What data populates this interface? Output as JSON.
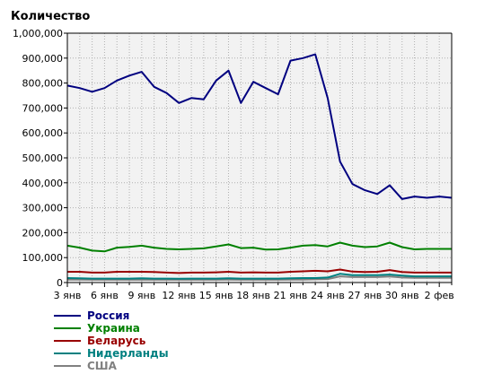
{
  "chart_data": {
    "type": "line",
    "title": "Количество",
    "ylim": [
      0,
      1000000
    ],
    "yticks": [
      "0",
      "100,000",
      "200,000",
      "300,000",
      "400,000",
      "500,000",
      "600,000",
      "700,000",
      "800,000",
      "900,000",
      "1,000,000"
    ],
    "x": [
      "3 янв",
      "4 янв",
      "5 янв",
      "6 янв",
      "7 янв",
      "8 янв",
      "9 янв",
      "10 янв",
      "11 янв",
      "12 янв",
      "13 янв",
      "14 янв",
      "15 янв",
      "16 янв",
      "17 янв",
      "18 янв",
      "19 янв",
      "20 янв",
      "21 янв",
      "22 янв",
      "23 янв",
      "24 янв",
      "25 янв",
      "26 янв",
      "27 янв",
      "28 янв",
      "29 янв",
      "30 янв",
      "31 янв",
      "1 фев",
      "2 фев",
      "3 фев"
    ],
    "xtick_labels": [
      "3 янв",
      "6 янв",
      "9 янв",
      "12 янв",
      "15 янв",
      "18 янв",
      "21 янв",
      "24 янв",
      "27 янв",
      "30 янв",
      "2 фев"
    ],
    "grid": true,
    "legend_position": "bottom-left",
    "series": [
      {
        "name": "Россия",
        "color": "#000080",
        "values": [
          790000,
          780000,
          765000,
          780000,
          810000,
          830000,
          845000,
          785000,
          760000,
          720000,
          740000,
          735000,
          810000,
          850000,
          720000,
          805000,
          780000,
          755000,
          890000,
          900000,
          915000,
          740000,
          485000,
          395000,
          370000,
          355000,
          390000,
          335000,
          345000,
          340000,
          345000,
          340000
        ]
      },
      {
        "name": "Украина",
        "color": "#008000",
        "values": [
          148000,
          140000,
          128000,
          125000,
          140000,
          143000,
          148000,
          140000,
          135000,
          133000,
          135000,
          137000,
          145000,
          153000,
          138000,
          140000,
          132000,
          133000,
          140000,
          148000,
          150000,
          145000,
          160000,
          148000,
          142000,
          145000,
          160000,
          142000,
          133000,
          135000,
          135000,
          135000
        ]
      },
      {
        "name": "Беларусь",
        "color": "#990000",
        "values": [
          43000,
          43000,
          40000,
          40000,
          43000,
          43000,
          43000,
          42000,
          40000,
          38000,
          40000,
          40000,
          41000,
          43000,
          40000,
          41000,
          40000,
          40000,
          43000,
          45000,
          47000,
          45000,
          52000,
          44000,
          42000,
          43000,
          50000,
          42000,
          40000,
          40000,
          40000,
          40000
        ]
      },
      {
        "name": "Нидерланды",
        "color": "#008080",
        "values": [
          18000,
          17000,
          16000,
          16000,
          16000,
          16000,
          17000,
          16000,
          16000,
          15000,
          16000,
          16000,
          16000,
          17000,
          16000,
          16000,
          16000,
          16000,
          17000,
          18000,
          18000,
          20000,
          35000,
          30000,
          30000,
          30000,
          32000,
          28000,
          25000,
          25000,
          25000,
          25000
        ]
      },
      {
        "name": "США",
        "color": "#808080",
        "values": [
          12000,
          12000,
          11000,
          11000,
          11000,
          11000,
          12000,
          11000,
          11000,
          11000,
          11000,
          11000,
          11000,
          12000,
          11000,
          11000,
          11000,
          11000,
          12000,
          12000,
          13000,
          14000,
          25000,
          22000,
          22000,
          22000,
          24000,
          20000,
          19000,
          19000,
          19000,
          19000
        ]
      }
    ]
  }
}
